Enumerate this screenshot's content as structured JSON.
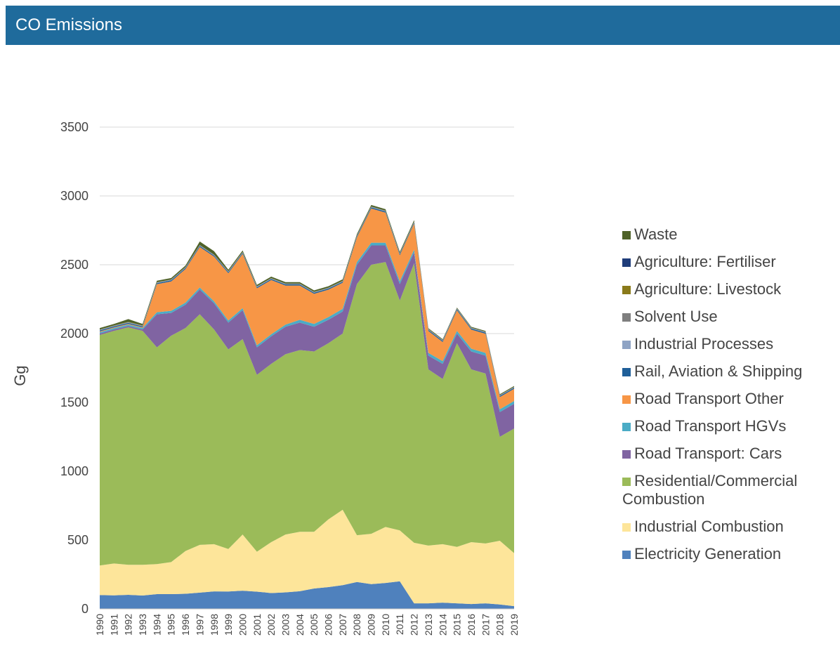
{
  "header": {
    "title": "CO Emissions"
  },
  "chart_data": {
    "type": "stacked_area",
    "y_label": "Gg",
    "categories": [
      "1990",
      "1991",
      "1992",
      "1993",
      "1994",
      "1995",
      "1996",
      "1997",
      "1998",
      "1999",
      "2000",
      "2001",
      "2002",
      "2003",
      "2004",
      "2005",
      "2006",
      "2007",
      "2008",
      "2009",
      "2010",
      "2011",
      "2012",
      "2013",
      "2014",
      "2015",
      "2016",
      "2017",
      "2018",
      "2019"
    ],
    "ylim": [
      0,
      3500
    ],
    "yticks": [
      0,
      500,
      1000,
      1500,
      2000,
      2500,
      3000,
      3500
    ],
    "grid": true,
    "legend": "right",
    "series": [
      {
        "name": "Electricity Generation",
        "color": "#4f81bd",
        "values": [
          100,
          98,
          102,
          97,
          107,
          107,
          110,
          118,
          127,
          126,
          132,
          125,
          115,
          120,
          128,
          148,
          158,
          172,
          195,
          180,
          188,
          200,
          40,
          40,
          45,
          40,
          35,
          40,
          32,
          20
        ]
      },
      {
        "name": "Industrial Combustion",
        "color": "#fde59a",
        "values": [
          215,
          232,
          218,
          223,
          218,
          233,
          310,
          347,
          343,
          309,
          408,
          290,
          370,
          420,
          432,
          412,
          492,
          548,
          340,
          365,
          407,
          370,
          440,
          420,
          425,
          410,
          450,
          435,
          463,
          385
        ]
      },
      {
        "name": "Residential/Commercial Combustion",
        "color": "#9bbb59",
        "values": [
          1675,
          1690,
          1725,
          1700,
          1575,
          1645,
          1620,
          1675,
          1560,
          1450,
          1420,
          1285,
          1295,
          1310,
          1320,
          1310,
          1280,
          1280,
          1825,
          1955,
          1925,
          1670,
          2030,
          1280,
          1200,
          1480,
          1255,
          1235,
          755,
          905
        ]
      },
      {
        "name": "Road Transport: Cars",
        "color": "#8064a2",
        "values": [
          10,
          10,
          10,
          10,
          240,
          165,
          170,
          180,
          190,
          195,
          210,
          200,
          200,
          200,
          200,
          180,
          170,
          160,
          140,
          140,
          120,
          120,
          80,
          100,
          110,
          70,
          130,
          130,
          180,
          180
        ]
      },
      {
        "name": "Road Transport HGVs",
        "color": "#4bacc6",
        "values": [
          10,
          10,
          10,
          10,
          15,
          15,
          15,
          15,
          15,
          15,
          15,
          15,
          15,
          15,
          20,
          20,
          20,
          20,
          20,
          20,
          20,
          20,
          20,
          20,
          20,
          20,
          20,
          20,
          20,
          20
        ]
      },
      {
        "name": "Road Transport Other",
        "color": "#f79646",
        "values": [
          5,
          5,
          5,
          5,
          204,
          214,
          244,
          294,
          324,
          344,
          394,
          414,
          394,
          284,
          249,
          219,
          199,
          189,
          179,
          249,
          219,
          189,
          189,
          159,
          139,
          149,
          139,
          139,
          89,
          89
        ]
      },
      {
        "name": "Rail, Aviation & Shipping",
        "color": "#1f5f99",
        "values": [
          8,
          8,
          8,
          8,
          8,
          8,
          8,
          8,
          8,
          8,
          8,
          8,
          8,
          8,
          8,
          8,
          8,
          8,
          8,
          8,
          8,
          8,
          8,
          8,
          8,
          8,
          8,
          8,
          8,
          8
        ]
      },
      {
        "name": "Industrial Processes",
        "color": "#8ea3c4",
        "values": [
          3,
          3,
          3,
          3,
          3,
          3,
          3,
          3,
          3,
          3,
          3,
          3,
          3,
          3,
          3,
          3,
          3,
          3,
          3,
          3,
          3,
          3,
          3,
          3,
          3,
          3,
          3,
          3,
          3,
          3
        ]
      },
      {
        "name": "Solvent Use",
        "color": "#7f7f7f",
        "values": [
          1,
          1,
          1,
          1,
          1,
          1,
          1,
          1,
          1,
          1,
          1,
          1,
          1,
          1,
          1,
          1,
          1,
          1,
          1,
          1,
          1,
          1,
          1,
          1,
          1,
          1,
          1,
          1,
          1,
          1
        ]
      },
      {
        "name": "Agriculture: Livestock",
        "color": "#8a7a1a",
        "values": [
          2,
          2,
          2,
          2,
          2,
          2,
          2,
          2,
          2,
          2,
          2,
          2,
          2,
          2,
          2,
          2,
          2,
          2,
          2,
          2,
          2,
          2,
          2,
          2,
          2,
          2,
          2,
          2,
          2,
          2
        ]
      },
      {
        "name": "Agriculture: Fertiliser",
        "color": "#1f3d7a",
        "values": [
          1,
          1,
          1,
          1,
          1,
          1,
          1,
          1,
          1,
          1,
          1,
          1,
          1,
          1,
          1,
          1,
          1,
          1,
          1,
          1,
          1,
          1,
          1,
          1,
          1,
          1,
          1,
          1,
          1,
          1
        ]
      },
      {
        "name": "Waste",
        "color": "#4f6228",
        "values": [
          10,
          10,
          20,
          10,
          10,
          10,
          10,
          25,
          25,
          10,
          10,
          10,
          10,
          10,
          10,
          10,
          10,
          10,
          10,
          10,
          10,
          10,
          10,
          5,
          5,
          5,
          5,
          5,
          5,
          5
        ]
      }
    ]
  }
}
